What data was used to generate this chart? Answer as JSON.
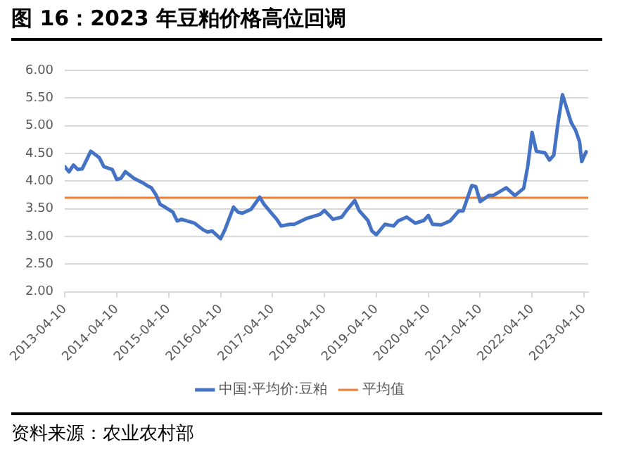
{
  "chart_data": {
    "type": "line",
    "title": "图 16：2023 年豆粕价格高位回调",
    "annotations": [
      "资料来源：农业农村部"
    ],
    "xlim": [
      "2013-04-10",
      "2023-05-10"
    ],
    "xticks": [
      "2013-04-10",
      "2014-04-10",
      "2015-04-10",
      "2016-04-10",
      "2017-04-10",
      "2018-04-10",
      "2019-04-10",
      "2020-04-10",
      "2021-04-10",
      "2022-04-10",
      "2023-04-10"
    ],
    "ylim": [
      2,
      6
    ],
    "yticks": [
      {
        "value": 2,
        "label": "2.00"
      },
      {
        "value": 2.5,
        "label": "2.50"
      },
      {
        "value": 3,
        "label": "3.00"
      },
      {
        "value": 3.5,
        "label": "3.50"
      },
      {
        "value": 4,
        "label": "4.00"
      },
      {
        "value": 4.5,
        "label": "4.50"
      },
      {
        "value": 5,
        "label": "5.00"
      },
      {
        "value": 5.5,
        "label": "5.50"
      },
      {
        "value": 6,
        "label": "6.00"
      }
    ],
    "grid": "y",
    "legend": "bottom",
    "marker": "none",
    "line_style": "solid",
    "series": [
      {
        "name": "中国:平均价:豆粕",
        "color": "#4472c4",
        "x": [
          "2013-04-10",
          "2013-05-10",
          "2013-06-10",
          "2013-07-10",
          "2013-08-10",
          "2013-10-10",
          "2013-12-10",
          "2014-01-10",
          "2014-03-10",
          "2014-04-10",
          "2014-05-10",
          "2014-06-10",
          "2014-08-10",
          "2014-10-10",
          "2014-11-10",
          "2014-12-10",
          "2015-01-10",
          "2015-02-10",
          "2015-03-10",
          "2015-05-10",
          "2015-06-10",
          "2015-07-10",
          "2015-10-10",
          "2015-12-10",
          "2016-01-10",
          "2016-02-10",
          "2016-04-10",
          "2016-05-10",
          "2016-07-10",
          "2016-08-10",
          "2016-09-10",
          "2016-11-10",
          "2017-01-10",
          "2017-02-10",
          "2017-04-10",
          "2017-05-10",
          "2017-06-10",
          "2017-08-10",
          "2017-09-10",
          "2017-12-10",
          "2018-03-10",
          "2018-04-10",
          "2018-06-10",
          "2018-08-10",
          "2018-09-10",
          "2018-11-10",
          "2018-12-10",
          "2019-02-10",
          "2019-03-10",
          "2019-04-10",
          "2019-06-10",
          "2019-08-10",
          "2019-09-10",
          "2019-11-10",
          "2020-01-10",
          "2020-03-10",
          "2020-04-10",
          "2020-05-10",
          "2020-07-10",
          "2020-09-10",
          "2020-11-10",
          "2020-12-10",
          "2021-02-10",
          "2021-03-10",
          "2021-04-10",
          "2021-06-10",
          "2021-07-10",
          "2021-10-10",
          "2021-12-10",
          "2022-02-10",
          "2022-03-10",
          "2022-04-10",
          "2022-05-10",
          "2022-07-10",
          "2022-08-10",
          "2022-09-10",
          "2022-10-10",
          "2022-11-10",
          "2023-01-10",
          "2023-02-10",
          "2023-03-10",
          "2023-03-25",
          "2023-04-25"
        ],
        "values": [
          4.26,
          4.17,
          4.29,
          4.21,
          4.22,
          4.54,
          4.42,
          4.26,
          4.21,
          4.03,
          4.05,
          4.17,
          4.05,
          3.97,
          3.92,
          3.88,
          3.76,
          3.58,
          3.54,
          3.44,
          3.28,
          3.31,
          3.24,
          3.12,
          3.08,
          3.1,
          2.96,
          3.12,
          3.53,
          3.44,
          3.42,
          3.49,
          3.71,
          3.58,
          3.4,
          3.31,
          3.19,
          3.22,
          3.22,
          3.33,
          3.4,
          3.47,
          3.31,
          3.35,
          3.46,
          3.65,
          3.47,
          3.29,
          3.1,
          3.03,
          3.22,
          3.19,
          3.28,
          3.35,
          3.24,
          3.29,
          3.38,
          3.22,
          3.21,
          3.28,
          3.46,
          3.46,
          3.92,
          3.9,
          3.63,
          3.74,
          3.74,
          3.88,
          3.74,
          3.87,
          4.26,
          4.88,
          4.54,
          4.51,
          4.38,
          4.47,
          5.06,
          5.56,
          5.06,
          4.92,
          4.71,
          4.35,
          4.53
        ]
      },
      {
        "name": "平均值",
        "color": "#ed7d31",
        "x": [
          "2013-04-10",
          "2023-05-10"
        ],
        "values": [
          3.7,
          3.7
        ]
      }
    ]
  }
}
